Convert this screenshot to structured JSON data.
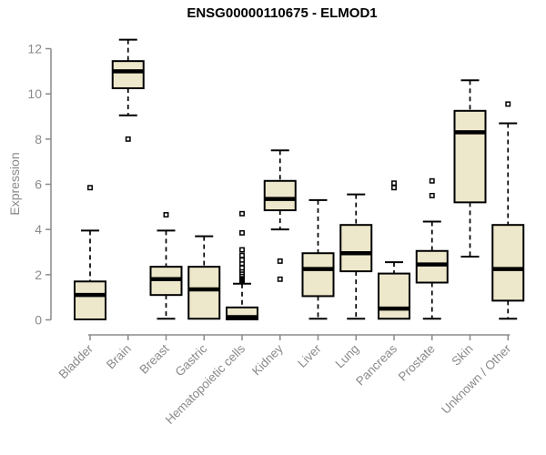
{
  "chart_data": {
    "type": "boxplot",
    "title": "ENSG00000110675 - ELMOD1",
    "ylabel": "Expression",
    "xlabel": "",
    "ylim": [
      0,
      12
    ],
    "yticks": [
      0,
      2,
      4,
      6,
      8,
      10,
      12
    ],
    "grid": false,
    "legend": "none",
    "categories": [
      "Bladder",
      "Brain",
      "Breast",
      "Gastric",
      "Hematopoietic cells",
      "Kidney",
      "Liver",
      "Lung",
      "Pancreas",
      "Prostate",
      "Skin",
      "Unknown / Other"
    ],
    "boxes": [
      {
        "category": "Bladder",
        "whisker_low": 0.02,
        "q1": 0.02,
        "median": 1.1,
        "q3": 1.7,
        "whisker_high": 3.95,
        "outliers": [
          5.85
        ]
      },
      {
        "category": "Brain",
        "whisker_low": 9.05,
        "q1": 10.25,
        "median": 11.0,
        "q3": 11.45,
        "whisker_high": 12.4,
        "outliers": [
          8.0
        ]
      },
      {
        "category": "Breast",
        "whisker_low": 0.05,
        "q1": 1.1,
        "median": 1.8,
        "q3": 2.35,
        "whisker_high": 3.95,
        "outliers": [
          4.65
        ]
      },
      {
        "category": "Gastric",
        "whisker_low": 0.05,
        "q1": 0.05,
        "median": 1.35,
        "q3": 2.35,
        "whisker_high": 3.7,
        "outliers": []
      },
      {
        "category": "Hematopoietic cells",
        "whisker_low": 0.02,
        "q1": 0.02,
        "median": 0.12,
        "q3": 0.55,
        "whisker_high": 1.6,
        "outliers": [
          1.7,
          1.75,
          1.8,
          1.85,
          1.9,
          1.95,
          2.0,
          2.1,
          2.2,
          2.3,
          2.5,
          2.65,
          2.85,
          3.1,
          3.85,
          4.7
        ]
      },
      {
        "category": "Kidney",
        "whisker_low": 4.0,
        "q1": 4.85,
        "median": 5.35,
        "q3": 6.15,
        "whisker_high": 7.5,
        "outliers": [
          2.6,
          1.8
        ]
      },
      {
        "category": "Liver",
        "whisker_low": 0.05,
        "q1": 1.05,
        "median": 2.25,
        "q3": 2.95,
        "whisker_high": 5.3,
        "outliers": []
      },
      {
        "category": "Lung",
        "whisker_low": 0.05,
        "q1": 2.15,
        "median": 2.95,
        "q3": 4.2,
        "whisker_high": 5.55,
        "outliers": []
      },
      {
        "category": "Pancreas",
        "whisker_low": 0.05,
        "q1": 0.05,
        "median": 0.5,
        "q3": 2.05,
        "whisker_high": 2.55,
        "outliers": [
          6.05,
          5.85
        ]
      },
      {
        "category": "Prostate",
        "whisker_low": 0.05,
        "q1": 1.65,
        "median": 2.45,
        "q3": 3.05,
        "whisker_high": 4.35,
        "outliers": [
          6.15,
          5.5
        ]
      },
      {
        "category": "Skin",
        "whisker_low": 2.8,
        "q1": 5.2,
        "median": 8.3,
        "q3": 9.25,
        "whisker_high": 10.6,
        "outliers": []
      },
      {
        "category": "Unknown / Other",
        "whisker_low": 0.05,
        "q1": 0.85,
        "median": 2.25,
        "q3": 4.2,
        "whisker_high": 8.7,
        "outliers": [
          9.55
        ]
      }
    ],
    "colors": {
      "box_fill": "#EDE7CB",
      "box_stroke": "#000000",
      "median": "#000000",
      "whisker": "#000000",
      "outlier_stroke": "#000000",
      "outlier_fill": "#ffffff",
      "axis": "#8a8a8a",
      "tick_text": "#8a8a8a",
      "title_text": "#000000"
    }
  }
}
